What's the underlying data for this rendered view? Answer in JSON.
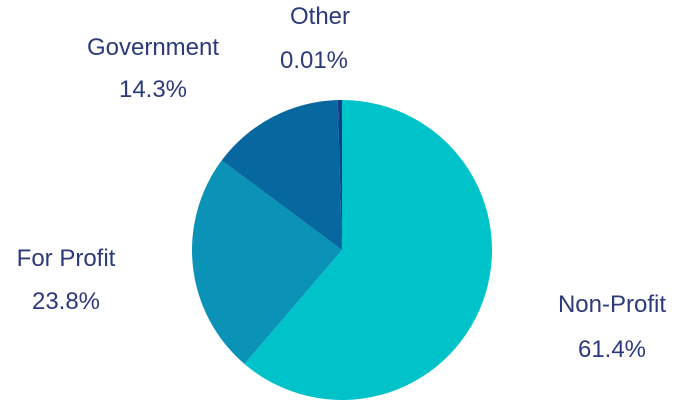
{
  "chart_data": {
    "type": "pie",
    "slices": [
      {
        "label": "Non-Profit",
        "value": 61.4,
        "value_label": "61.4%",
        "color": "#00c2c9"
      },
      {
        "label": "For Profit",
        "value": 23.8,
        "value_label": "23.8%",
        "color": "#0a93b7"
      },
      {
        "label": "Government",
        "value": 14.3,
        "value_label": "14.3%",
        "color": "#0768a0"
      },
      {
        "label": "Other",
        "value": 0.01,
        "value_label": "0.01%",
        "color": "#123e86"
      }
    ],
    "label_color": "#2b3a7a"
  }
}
